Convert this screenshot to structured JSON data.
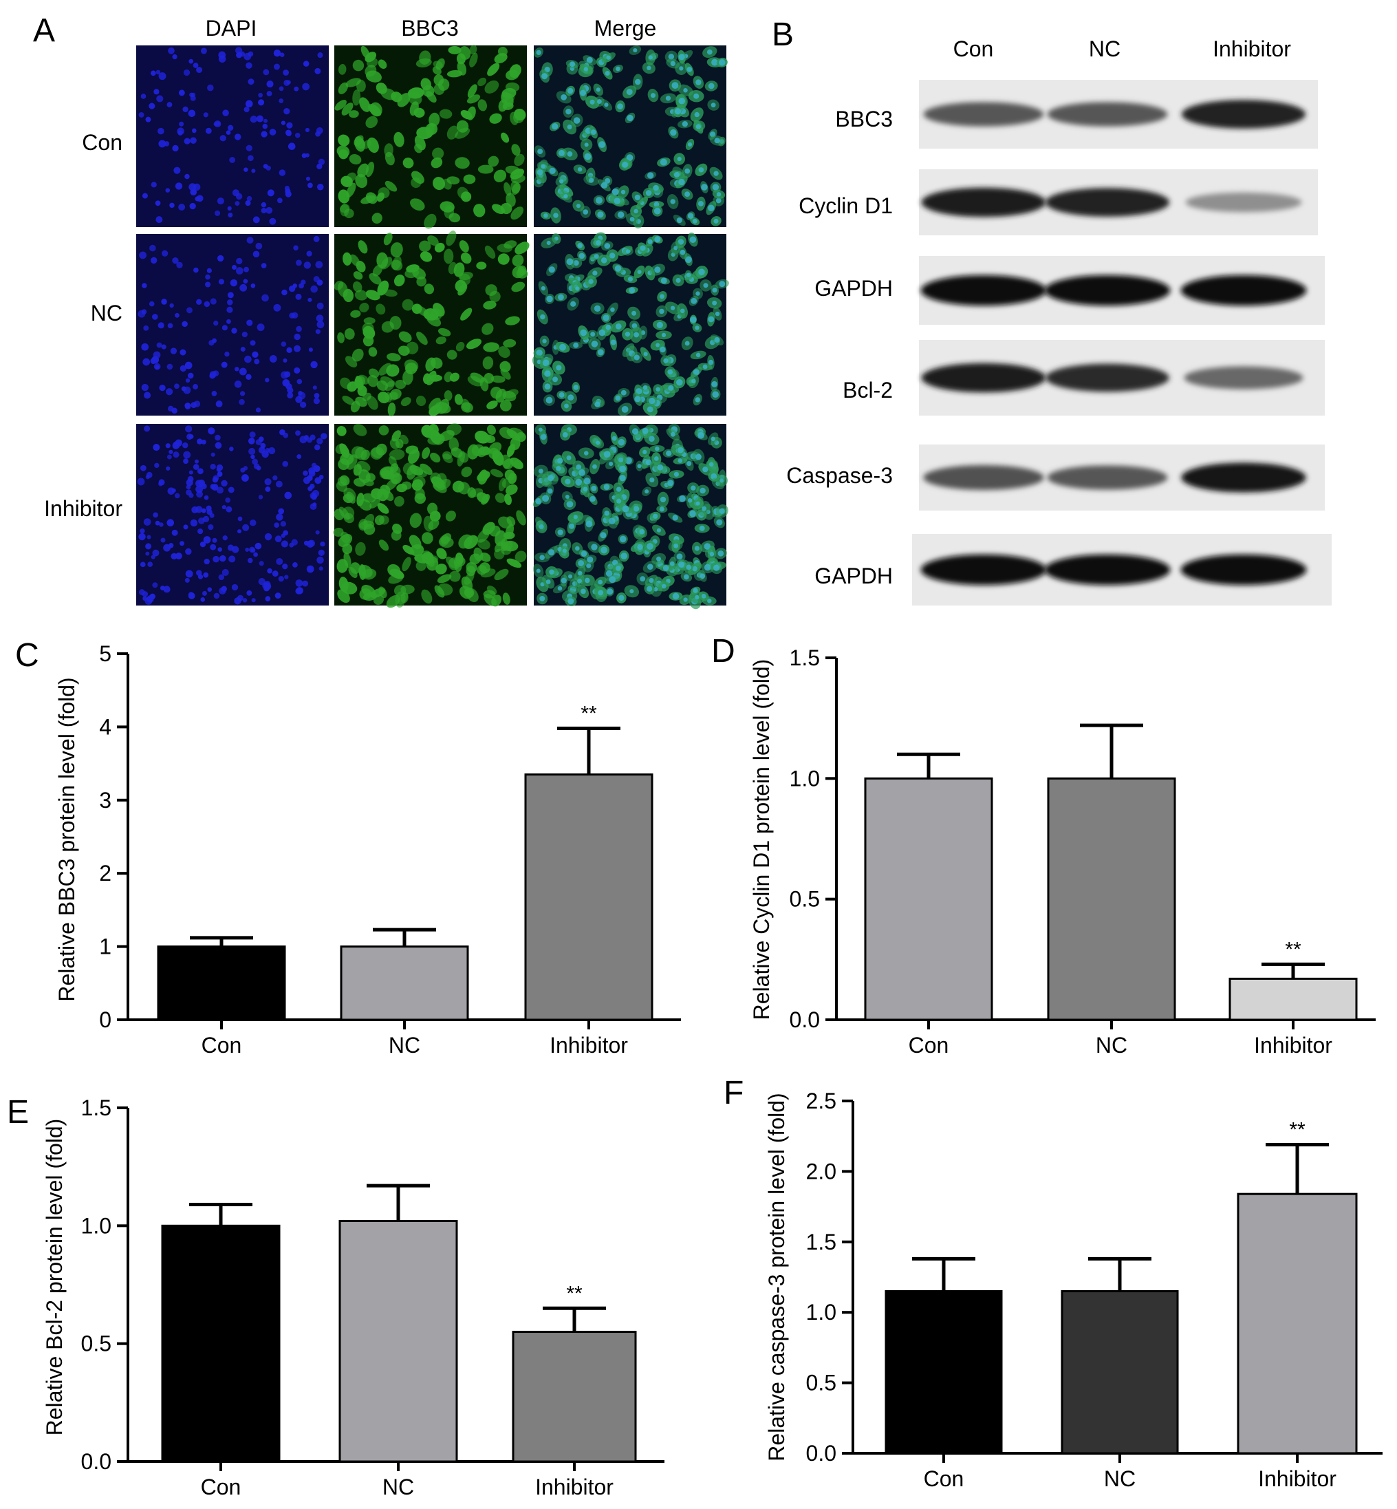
{
  "figure": {
    "panels": {
      "A": {
        "letter": "A",
        "columns": [
          "DAPI",
          "BBC3",
          "Merge"
        ],
        "rows": [
          "Con",
          "NC",
          "Inhibitor"
        ],
        "channel_colors": {
          "DAPI": "#1f23d8",
          "BBC3": "#2fa52a",
          "Merge": "#2e8c8f"
        }
      },
      "B": {
        "letter": "B",
        "lanes": [
          "Con",
          "NC",
          "Inhibitor"
        ],
        "blots": [
          {
            "label": "BBC3",
            "intensity": [
              0.62,
              0.62,
              0.85
            ]
          },
          {
            "label": "Cyclin D1",
            "intensity": [
              0.88,
              0.85,
              0.38
            ]
          },
          {
            "label": "GAPDH",
            "intensity": [
              0.95,
              0.95,
              0.95
            ]
          },
          {
            "label": "Bcl-2",
            "intensity": [
              0.88,
              0.82,
              0.55
            ]
          },
          {
            "label": "Caspase-3",
            "intensity": [
              0.65,
              0.62,
              0.9
            ]
          },
          {
            "label": "GAPDH",
            "intensity": [
              0.95,
              0.95,
              0.95
            ]
          }
        ]
      }
    }
  },
  "chart_data": [
    {
      "panel": "C",
      "type": "bar",
      "categories": [
        "Con",
        "NC",
        "Inhibitor"
      ],
      "values": [
        1.0,
        1.0,
        3.35
      ],
      "errors": [
        0.12,
        0.23,
        0.63
      ],
      "significance": [
        "",
        "",
        "**"
      ],
      "colors": [
        "#000000",
        "#a2a2a7",
        "#7f7f7f"
      ],
      "ylabel": "Relative BBC3 protein level (fold)",
      "ylim": [
        0,
        5
      ],
      "yticks": [
        "0",
        "1",
        "2",
        "3",
        "4",
        "5"
      ]
    },
    {
      "panel": "D",
      "type": "bar",
      "categories": [
        "Con",
        "NC",
        "Inhibitor"
      ],
      "values": [
        1.0,
        1.0,
        0.17
      ],
      "errors": [
        0.1,
        0.22,
        0.06
      ],
      "significance": [
        "",
        "",
        "**"
      ],
      "colors": [
        "#a2a2a7",
        "#7f7f7f",
        "#d3d3d3"
      ],
      "ylabel": "Relative Cyclin D1 protein level (fold)",
      "ylim": [
        0,
        1.5
      ],
      "yticks": [
        "0.0",
        "0.5",
        "1.0",
        "1.5"
      ]
    },
    {
      "panel": "E",
      "type": "bar",
      "categories": [
        "Con",
        "NC",
        "Inhibitor"
      ],
      "values": [
        1.0,
        1.02,
        0.55
      ],
      "errors": [
        0.09,
        0.15,
        0.1
      ],
      "significance": [
        "",
        "",
        "**"
      ],
      "colors": [
        "#000000",
        "#a2a2a7",
        "#7f7f7f"
      ],
      "ylabel": "Relative Bcl-2 protein level (fold)",
      "ylim": [
        0,
        1.5
      ],
      "yticks": [
        "0.0",
        "0.5",
        "1.0",
        "1.5"
      ]
    },
    {
      "panel": "F",
      "type": "bar",
      "categories": [
        "Con",
        "NC",
        "Inhibitor"
      ],
      "values": [
        1.15,
        1.15,
        1.84
      ],
      "errors": [
        0.23,
        0.23,
        0.35
      ],
      "significance": [
        "",
        "",
        "**"
      ],
      "colors": [
        "#000000",
        "#333333",
        "#a2a2a7"
      ],
      "ylabel": "Relative caspase-3 protein level (fold)",
      "ylim": [
        0,
        2.5
      ],
      "yticks": [
        "0.0",
        "0.5",
        "1.0",
        "1.5",
        "2.0",
        "2.5"
      ]
    }
  ]
}
